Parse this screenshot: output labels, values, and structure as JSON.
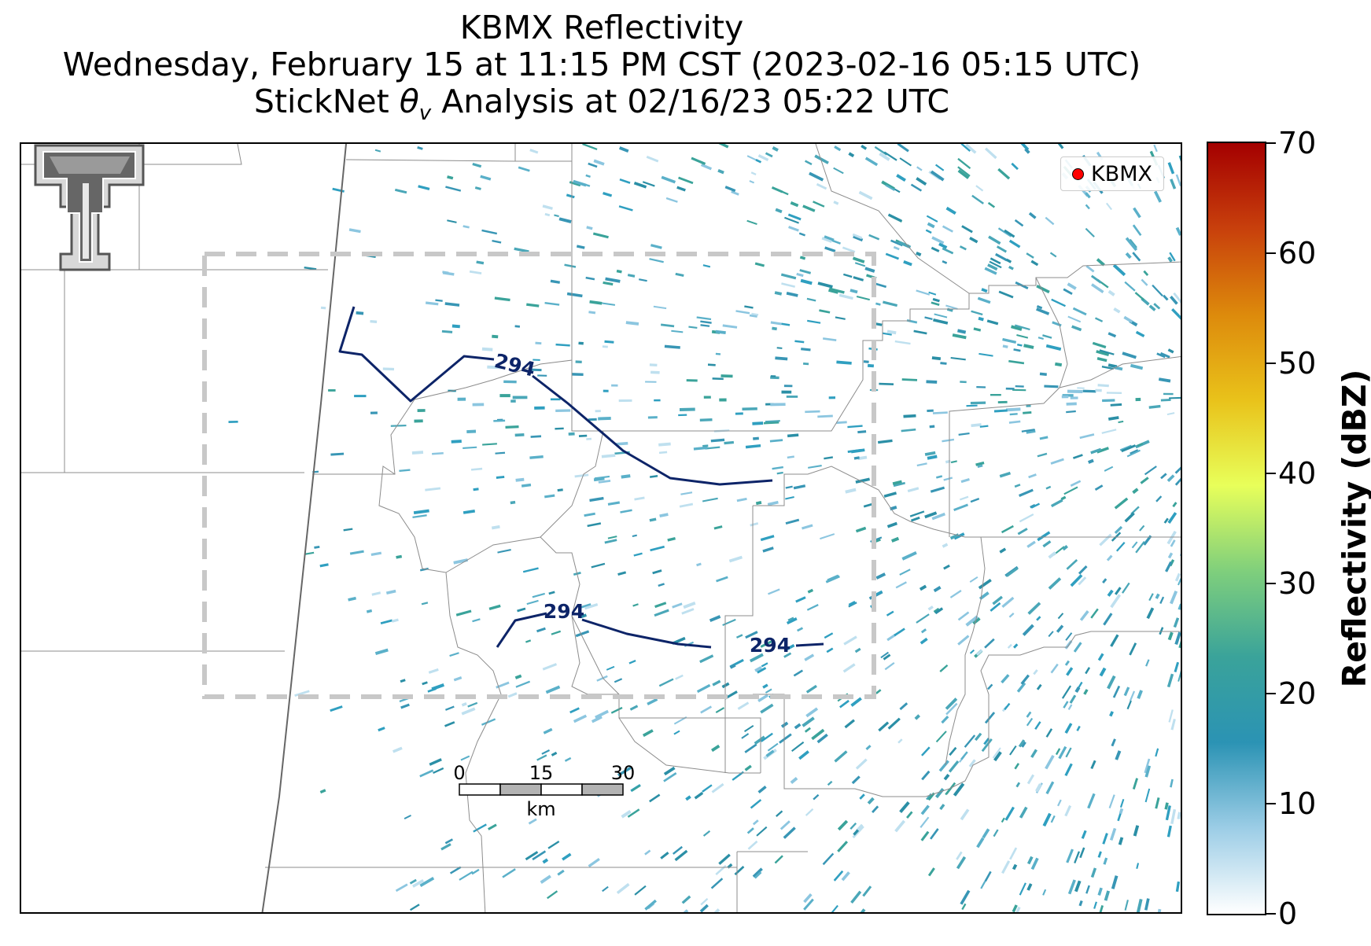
{
  "title": {
    "line1": "KBMX Reflectivity",
    "line2": "Wednesday, February 15 at 11:15 PM CST (2023-02-16 05:15 UTC)",
    "line3_prefix": "StickNet ",
    "line3_symbol": "θ",
    "line3_subscript": "v",
    "line3_suffix": " Analysis at 02/16/23 05:22 UTC"
  },
  "legend": {
    "label": "KBMX",
    "marker_color": "#ff0000"
  },
  "contours": {
    "level_label": "294",
    "color": "#0d2468"
  },
  "scale_bar": {
    "ticks": [
      "0",
      "15",
      "30"
    ],
    "unit": "km"
  },
  "colorbar": {
    "title": "Reflectivity (dBZ)",
    "min": 0,
    "max": 70,
    "ticks": [
      "0",
      "10",
      "20",
      "30",
      "40",
      "50",
      "60",
      "70"
    ],
    "colors": [
      "#ffffff",
      "#9ccde6",
      "#2b93b4",
      "#3aa39a",
      "#7fcf7c",
      "#e8ff5a",
      "#e9c21a",
      "#dd8a0c",
      "#c8400c",
      "#a40000"
    ]
  },
  "map_style": {
    "boundary_color": "#8c8c8c",
    "state_line_color": "#666666",
    "analysis_box_color": "#c8c8c8",
    "logo_color": "#555555"
  }
}
